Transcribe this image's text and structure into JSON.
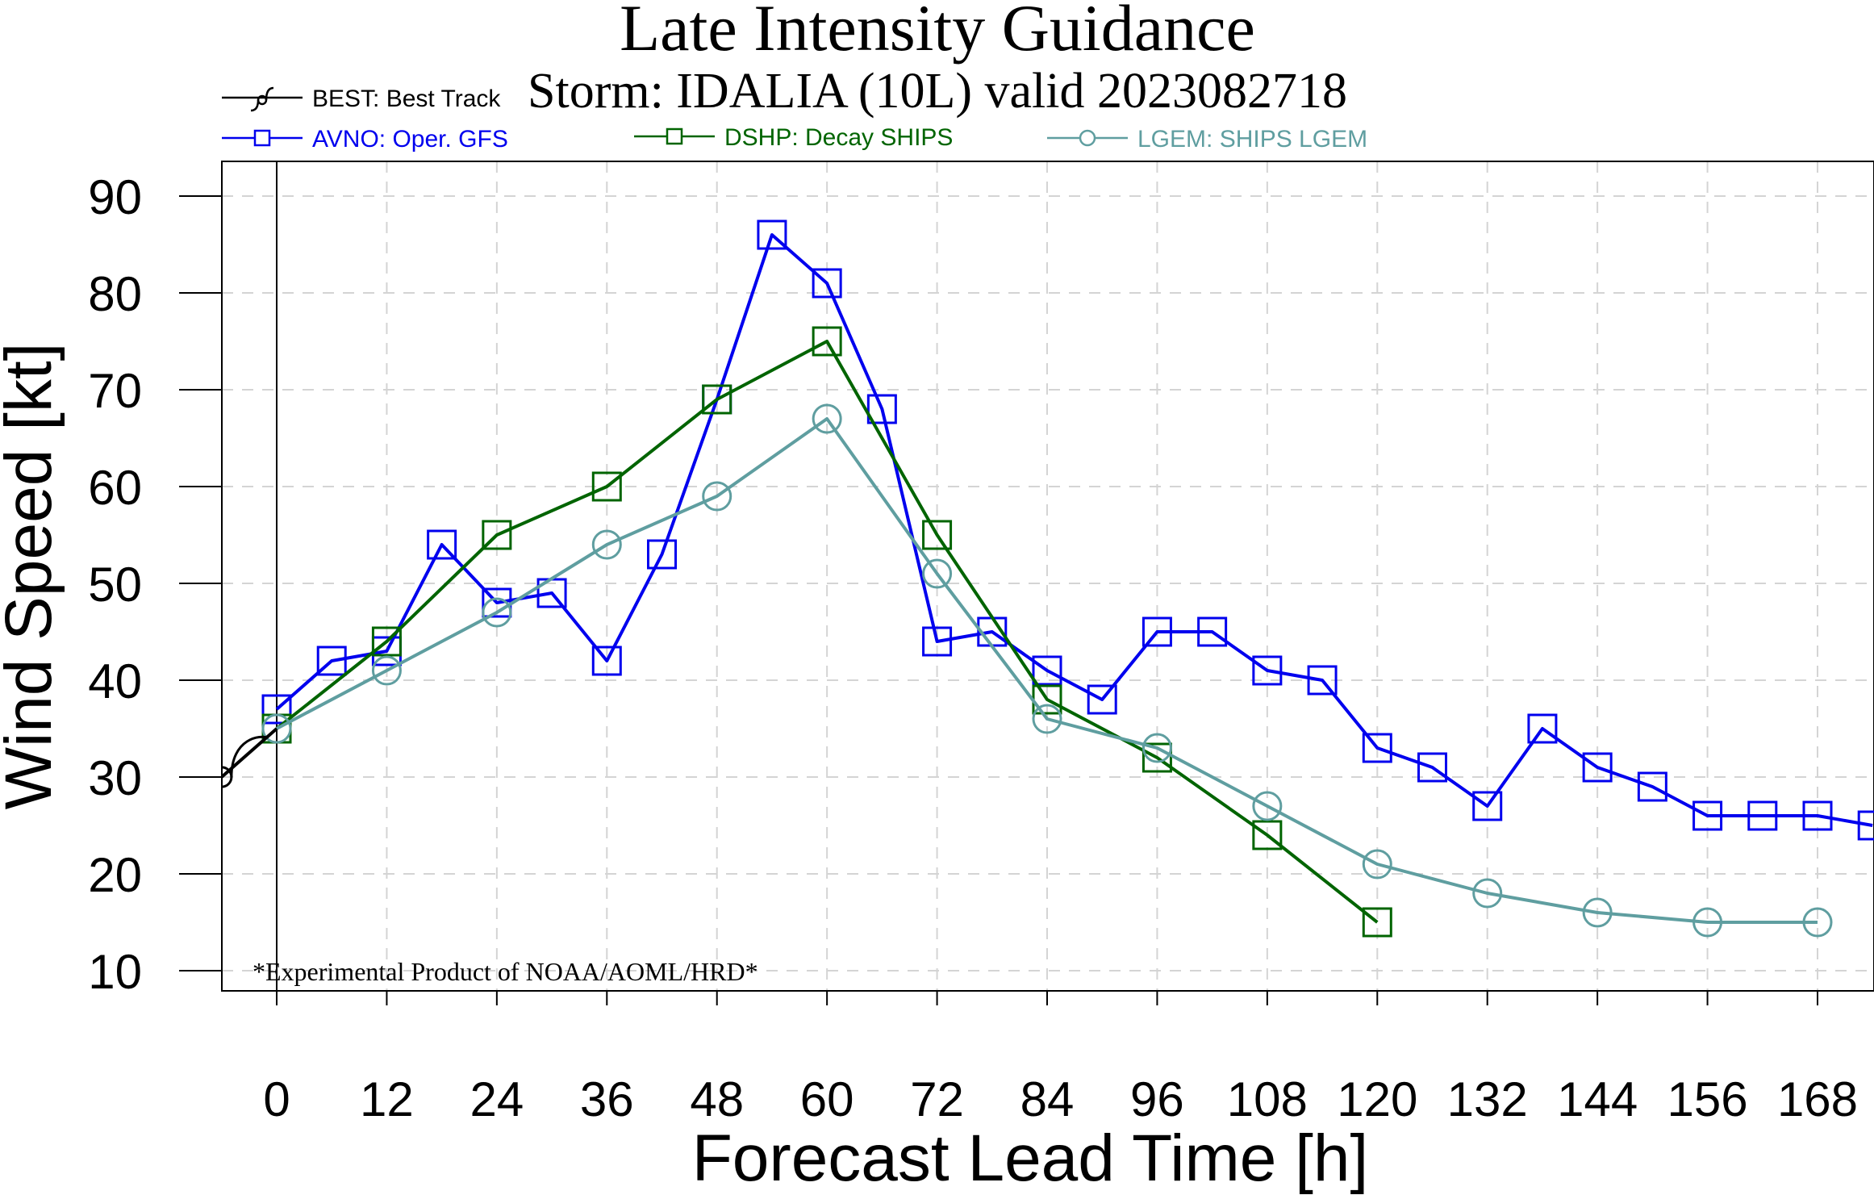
{
  "chart_data": {
    "type": "line",
    "title": "Late Intensity Guidance",
    "subtitle": "Storm: IDALIA (10L) valid 2023082718",
    "xlabel": "Forecast Lead Time [h]",
    "ylabel": "Wind Speed [kt]",
    "xlim": [
      -6,
      174
    ],
    "ylim": [
      7.5,
      92.5
    ],
    "xticks": [
      0,
      12,
      24,
      36,
      48,
      60,
      72,
      84,
      96,
      108,
      120,
      132,
      144,
      156,
      168
    ],
    "yticks": [
      10,
      20,
      30,
      40,
      50,
      60,
      70,
      80,
      90
    ],
    "grid": true,
    "legend_position": "top",
    "footnote": "*Experimental Product of NOAA/AOML/HRD*",
    "series": [
      {
        "name": "BEST: Best Track",
        "color": "#000000",
        "marker": "hurricane",
        "x": [
          -6,
          0
        ],
        "values": [
          30,
          35
        ]
      },
      {
        "name": "AVNO: Oper. GFS",
        "color": "#0000ee",
        "marker": "square",
        "x": [
          0,
          6,
          12,
          18,
          24,
          30,
          36,
          42,
          48,
          54,
          60,
          66,
          72,
          78,
          84,
          90,
          96,
          102,
          108,
          114,
          120,
          126,
          132,
          138,
          144,
          150,
          156,
          162,
          168,
          174
        ],
        "values": [
          37,
          42,
          43,
          54,
          48,
          49,
          42,
          53,
          69,
          86,
          81,
          68,
          44,
          45,
          41,
          38,
          45,
          45,
          41,
          40,
          33,
          31,
          27,
          35,
          31,
          29,
          26,
          26,
          26,
          25
        ]
      },
      {
        "name": "DSHP: Decay SHIPS",
        "color": "#006400",
        "marker": "square",
        "x": [
          0,
          12,
          24,
          36,
          48,
          60,
          72,
          84,
          96,
          108,
          120
        ],
        "values": [
          35,
          44,
          55,
          60,
          69,
          75,
          55,
          38,
          32,
          24,
          15
        ]
      },
      {
        "name": "LGEM: SHIPS LGEM",
        "color": "#5f9ea0",
        "marker": "circle",
        "x": [
          0,
          12,
          24,
          36,
          48,
          60,
          72,
          84,
          96,
          108,
          120,
          132,
          144,
          156,
          168
        ],
        "values": [
          35,
          41,
          47,
          54,
          59,
          67,
          51,
          36,
          33,
          27,
          21,
          18,
          16,
          15,
          15
        ]
      }
    ]
  }
}
